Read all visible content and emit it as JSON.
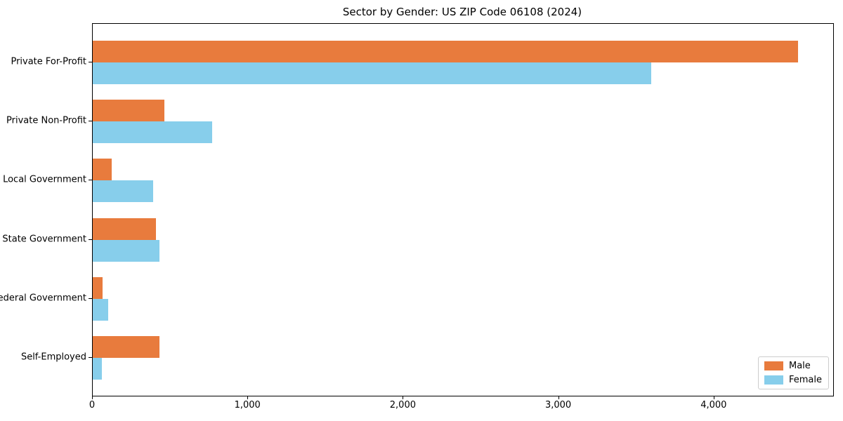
{
  "chart_data": {
    "type": "bar",
    "orientation": "horizontal",
    "title": "Sector by Gender: US ZIP Code 06108 (2024)",
    "categories": [
      "Private For-Profit",
      "Private Non-Profit",
      "Local Government",
      "State Government",
      "Federal Government",
      "Self-Employed"
    ],
    "series": [
      {
        "name": "Male",
        "color": "#e87b3d",
        "values": [
          4540,
          460,
          120,
          405,
          65,
          430
        ]
      },
      {
        "name": "Female",
        "color": "#87ceeb",
        "values": [
          3595,
          770,
          390,
          430,
          100,
          60
        ]
      }
    ],
    "xlabel": "",
    "ylabel": "",
    "xlim": [
      0,
      4765
    ],
    "xticks": [
      {
        "value": 0,
        "label": "0"
      },
      {
        "value": 1000,
        "label": "1,000"
      },
      {
        "value": 2000,
        "label": "2,000"
      },
      {
        "value": 3000,
        "label": "3,000"
      },
      {
        "value": 4000,
        "label": "4,000"
      }
    ],
    "grid": false,
    "legend": {
      "position": "lower right",
      "entries": [
        "Male",
        "Female"
      ]
    },
    "colors": {
      "male": "#e87b3d",
      "female": "#87ceeb",
      "spine": "#000000",
      "legend_border": "#cccccc",
      "background": "#ffffff"
    }
  }
}
